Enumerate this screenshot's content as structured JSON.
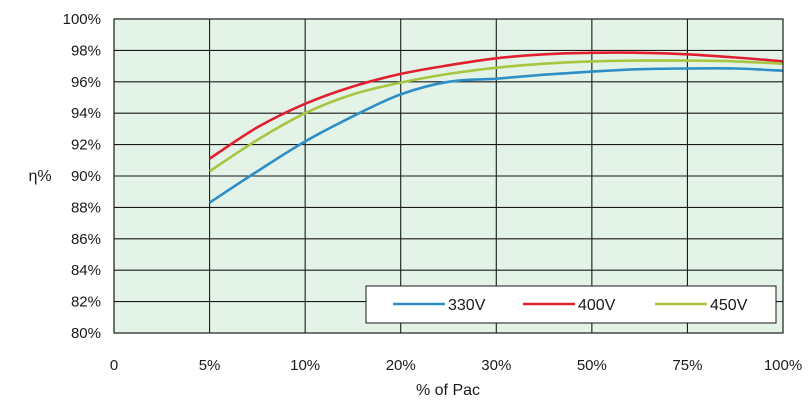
{
  "chart_data": {
    "type": "line",
    "title": "",
    "xlabel": "% of Pac",
    "ylabel": "η%",
    "x_categories": [
      "0",
      "5%",
      "10%",
      "20%",
      "30%",
      "50%",
      "75%",
      "100%"
    ],
    "y_ticks": [
      "80%",
      "82%",
      "84%",
      "86%",
      "88%",
      "90%",
      "92%",
      "94%",
      "96%",
      "98%",
      "100%"
    ],
    "ylim": [
      80,
      100
    ],
    "grid": true,
    "legend_position": "bottom-right",
    "colors": {
      "plot_background": "#e4f3e8",
      "grid": "#1a1a1a"
    },
    "series": [
      {
        "name": "330V",
        "color": "#2e8fc7",
        "points": [
          [
            1,
            88.3
          ],
          [
            1.5,
            90.3
          ],
          [
            2,
            92.2
          ],
          [
            2.5,
            93.8
          ],
          [
            3,
            95.2
          ],
          [
            3.5,
            96.0
          ],
          [
            4,
            96.2
          ],
          [
            4.5,
            96.45
          ],
          [
            5,
            96.65
          ],
          [
            5.5,
            96.8
          ],
          [
            6,
            96.85
          ],
          [
            6.5,
            96.85
          ],
          [
            7,
            96.7
          ]
        ]
      },
      {
        "name": "400V",
        "color": "#e02030",
        "points": [
          [
            1,
            91.1
          ],
          [
            1.5,
            93.1
          ],
          [
            2,
            94.6
          ],
          [
            2.5,
            95.7
          ],
          [
            3,
            96.5
          ],
          [
            3.5,
            97.05
          ],
          [
            4,
            97.5
          ],
          [
            4.5,
            97.75
          ],
          [
            5,
            97.85
          ],
          [
            5.5,
            97.85
          ],
          [
            6,
            97.75
          ],
          [
            6.5,
            97.55
          ],
          [
            7,
            97.3
          ]
        ]
      },
      {
        "name": "450V",
        "color": "#a8c540",
        "points": [
          [
            1,
            90.3
          ],
          [
            1.5,
            92.3
          ],
          [
            2,
            94.0
          ],
          [
            2.5,
            95.2
          ],
          [
            3,
            95.95
          ],
          [
            3.5,
            96.5
          ],
          [
            4,
            96.9
          ],
          [
            4.5,
            97.15
          ],
          [
            5,
            97.3
          ],
          [
            5.5,
            97.35
          ],
          [
            6,
            97.35
          ],
          [
            6.5,
            97.3
          ],
          [
            7,
            97.15
          ]
        ]
      }
    ]
  }
}
